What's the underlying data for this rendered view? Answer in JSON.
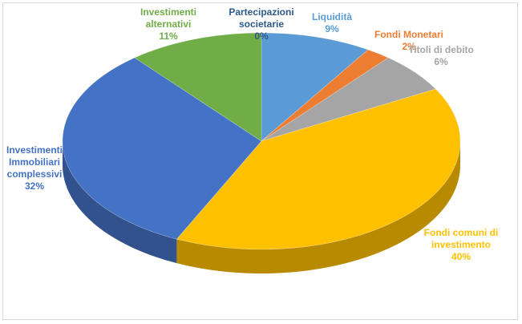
{
  "chart_data": {
    "type": "pie",
    "title": "",
    "style": "3d-exploded-none",
    "legend": "none",
    "slices": [
      {
        "name": "Partecipazioni societarie",
        "value": 0,
        "label": "0%",
        "color": "#2e5a8a"
      },
      {
        "name": "Liquidità",
        "value": 9,
        "label": "9%",
        "color": "#5b9bd5"
      },
      {
        "name": "Fondi Monetari",
        "value": 2,
        "label": "2%",
        "color": "#ed7d31"
      },
      {
        "name": "Titoli di debito",
        "value": 6,
        "label": "6%",
        "color": "#a5a5a5"
      },
      {
        "name": "Fondi comuni di investimento",
        "value": 40,
        "label": "40%",
        "color": "#ffc000"
      },
      {
        "name": "Investimenti Immobiliari complessivi",
        "value": 32,
        "label": "32%",
        "color": "#4472c4"
      },
      {
        "name": "Investimenti alternativi",
        "value": 11,
        "label": "11%",
        "color": "#70ad47"
      }
    ],
    "label_lines": {
      "Partecipazioni societarie": [
        "Partecipazioni",
        "societarie",
        "0%"
      ],
      "Liquidità": [
        "Liquidità",
        "9%"
      ],
      "Fondi Monetari": [
        "Fondi Monetari",
        "2%"
      ],
      "Titoli di debito": [
        "Titoli di debito",
        "6%"
      ],
      "Fondi comuni di investimento": [
        "Fondi comuni di",
        "investimento",
        "40%"
      ],
      "Investimenti Immobiliari complessivi": [
        "Investimenti",
        "Immobiliari",
        "complessivi",
        "32%"
      ],
      "Investimenti alternativi": [
        "Investimenti",
        "alternativi",
        "11%"
      ]
    }
  }
}
